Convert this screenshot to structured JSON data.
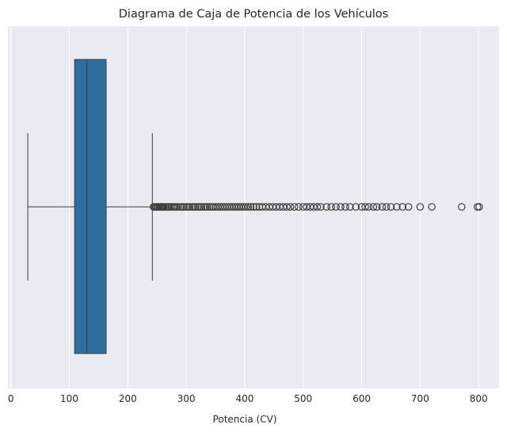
{
  "chart_data": {
    "type": "boxplot",
    "orientation": "horizontal",
    "title": "Diagrama de Caja de Potencia de los Vehículos",
    "xlabel": "Potencia (CV)",
    "ylabel": "",
    "xlim": [
      -5,
      835
    ],
    "xticks": [
      0,
      100,
      200,
      300,
      400,
      500,
      600,
      700,
      800
    ],
    "xtick_labels": [
      "0",
      "100",
      "200",
      "300",
      "400",
      "500",
      "600",
      "700",
      "800"
    ],
    "grid": true,
    "legend": "none",
    "box": {
      "whisker_low": 29,
      "q1": 109,
      "median": 130,
      "q3": 163,
      "whisker_high": 242
    },
    "outliers": [
      244,
      246,
      248,
      250,
      252,
      254,
      256,
      258,
      260,
      262,
      265,
      268,
      270,
      272,
      275,
      278,
      280,
      283,
      286,
      290,
      293,
      296,
      300,
      303,
      306,
      310,
      313,
      316,
      320,
      323,
      326,
      330,
      333,
      336,
      340,
      343,
      346,
      350,
      354,
      358,
      362,
      366,
      370,
      374,
      378,
      382,
      386,
      390,
      394,
      398,
      402,
      406,
      410,
      415,
      420,
      425,
      430,
      436,
      442,
      448,
      454,
      460,
      466,
      472,
      478,
      485,
      492,
      500,
      506,
      512,
      518,
      524,
      530,
      540,
      548,
      556,
      564,
      572,
      580,
      590,
      600,
      606,
      612,
      620,
      626,
      635,
      642,
      650,
      660,
      670,
      680,
      700,
      720,
      771,
      798,
      801
    ],
    "colors": {
      "box_fill": "#2e6e9e",
      "line": "#3d3d3d",
      "plot_background": "#eaeaf2",
      "grid": "#ffffff"
    }
  }
}
